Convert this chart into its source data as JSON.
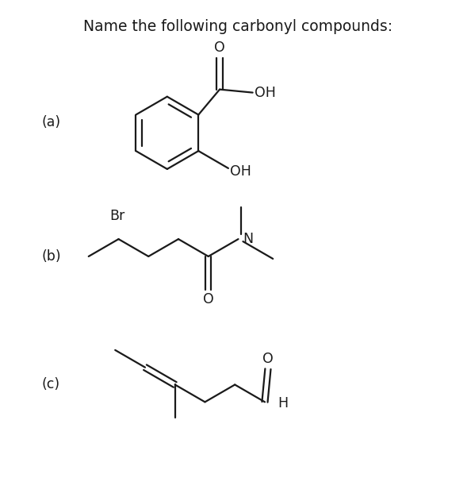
{
  "title": "Name the following carbonyl compounds:",
  "title_fontsize": 13.5,
  "label_a": "(a)",
  "label_b": "(b)",
  "label_c": "(c)",
  "bg_color": "#ffffff",
  "line_color": "#1a1a1a",
  "line_width": 1.6,
  "font_color": "#1a1a1a",
  "text_fontsize": 12.5
}
